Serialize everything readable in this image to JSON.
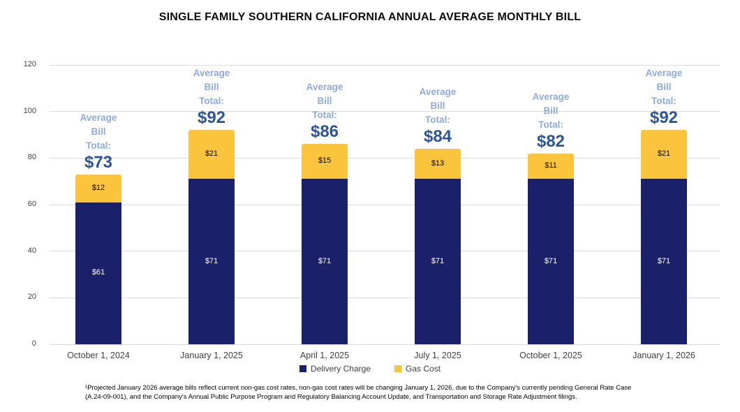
{
  "title": "SINGLE FAMILY SOUTHERN CALIFORNIA ANNUAL AVERAGE MONTHLY BILL",
  "chart_data": {
    "type": "bar",
    "stacked": true,
    "title": "SINGLE FAMILY SOUTHERN CALIFORNIA ANNUAL AVERAGE MONTHLY BILL",
    "categories": [
      "October 1, 2024",
      "January 1, 2025",
      "April 1, 2025",
      "July 1, 2025",
      "October 1, 2025",
      "January 1, 2026"
    ],
    "series": [
      {
        "name": "Delivery Charge",
        "color": "#1b2168",
        "values": [
          61,
          71,
          71,
          71,
          71,
          71
        ],
        "data_labels": [
          "$61",
          "$71",
          "$71",
          "$71",
          "$71",
          "$71"
        ],
        "label_color": "#ffffff"
      },
      {
        "name": "Gas Cost",
        "color": "#fbc43d",
        "values": [
          12,
          21,
          15,
          13,
          11,
          21
        ],
        "data_labels": [
          "$12",
          "$21",
          "$15",
          "$13",
          "$11",
          "$21"
        ],
        "label_color": "#000000"
      }
    ],
    "totals": {
      "heading_lines": [
        "Average",
        "Bill",
        "Total:"
      ],
      "values": [
        "$73",
        "$92",
        "$86",
        "$84",
        "$82",
        "$92"
      ],
      "heading_color": "#8faadc",
      "value_color": "#2e5597"
    },
    "ylim": [
      0,
      120
    ],
    "yticks": [
      0,
      20,
      40,
      60,
      80,
      100,
      120
    ],
    "grid": true,
    "legend": {
      "position": "bottom",
      "entries": [
        {
          "label": "Delivery Charge",
          "color": "#1b2168"
        },
        {
          "label": "Gas Cost",
          "color": "#fbc43d"
        }
      ]
    }
  },
  "footnote": {
    "line1": "¹Projected January 2026 average bills reflect current non-gas cost rates, non-gas cost rates will be changing January 1, 2026, due to the Company's currently pending General Rate Case",
    "line2": "(A.24-09-001), and the Company's Annual Public Purpose Program and Regulatory Balancing Account Update, and Transportation and Storage Rate Adjustment filings."
  }
}
